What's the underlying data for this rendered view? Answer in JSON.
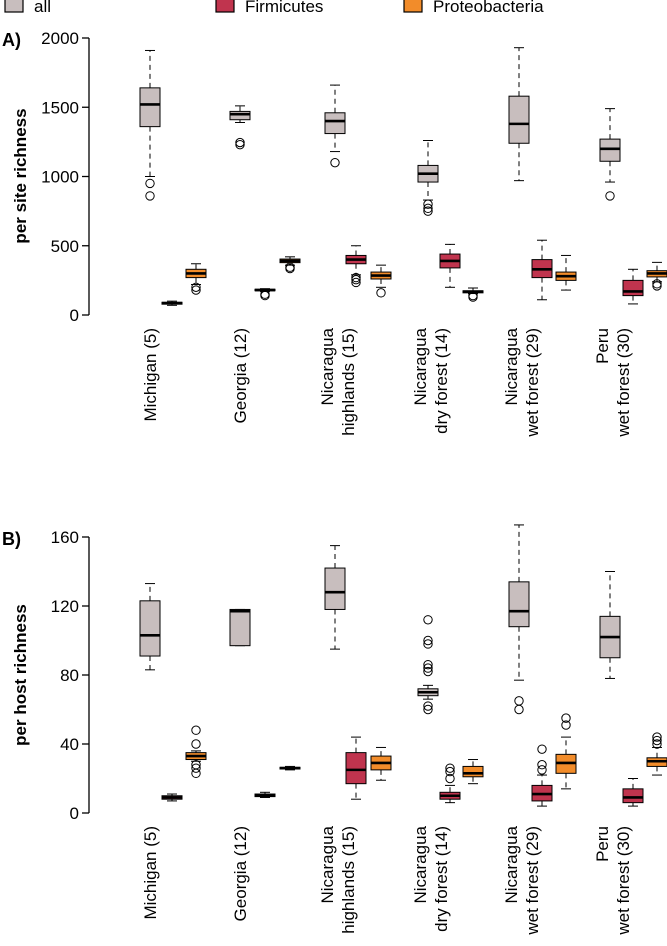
{
  "legend": {
    "items": [
      {
        "label": "all",
        "color": "#c8bebe"
      },
      {
        "label": "Firmicutes",
        "color": "#c0344e"
      },
      {
        "label": "Proteobacteria",
        "color": "#f28c2a"
      }
    ]
  },
  "chart_data": [
    {
      "type": "boxplot",
      "panel_label": "A)",
      "ylabel": "per site richness",
      "ylim": [
        0,
        2000
      ],
      "yticks": [
        0,
        500,
        1000,
        1500,
        2000
      ],
      "categories": [
        {
          "lines": [
            "Michigan (5)"
          ]
        },
        {
          "lines": [
            "Georgia (12)"
          ]
        },
        {
          "lines": [
            "Nicaragua",
            "highlands (15)"
          ]
        },
        {
          "lines": [
            "Nicaragua",
            "dry forest (14)"
          ]
        },
        {
          "lines": [
            "Nicaragua",
            "wet forest (29)"
          ]
        },
        {
          "lines": [
            "Peru",
            "wet forest (30)"
          ]
        }
      ],
      "series": [
        {
          "name": "all",
          "color": "#c8bebe",
          "boxes": [
            {
              "min": 1000,
              "q1": 1360,
              "median": 1520,
              "q3": 1640,
              "max": 1910,
              "outliers": [
                860,
                950
              ]
            },
            {
              "min": 1390,
              "q1": 1410,
              "median": 1450,
              "q3": 1470,
              "max": 1510,
              "outliers": [
                1230,
                1245
              ]
            },
            {
              "min": 1180,
              "q1": 1310,
              "median": 1400,
              "q3": 1460,
              "max": 1660,
              "outliers": [
                1100
              ]
            },
            {
              "min": 830,
              "q1": 960,
              "median": 1020,
              "q3": 1080,
              "max": 1260,
              "outliers": [
                750,
                770,
                800
              ]
            },
            {
              "min": 970,
              "q1": 1240,
              "median": 1380,
              "q3": 1580,
              "max": 1930,
              "outliers": []
            },
            {
              "min": 960,
              "q1": 1110,
              "median": 1200,
              "q3": 1270,
              "max": 1490,
              "outliers": [
                860
              ]
            }
          ]
        },
        {
          "name": "Firmicutes",
          "color": "#c0344e",
          "boxes": [
            {
              "min": 70,
              "q1": 78,
              "median": 85,
              "q3": 92,
              "max": 100,
              "outliers": []
            },
            {
              "min": 170,
              "q1": 176,
              "median": 180,
              "q3": 186,
              "max": 190,
              "outliers": [
                140,
                150
              ]
            },
            {
              "min": 290,
              "q1": 370,
              "median": 400,
              "q3": 430,
              "max": 500,
              "outliers": [
                235,
                255,
                270
              ]
            },
            {
              "min": 200,
              "q1": 340,
              "median": 390,
              "q3": 440,
              "max": 510,
              "outliers": []
            },
            {
              "min": 110,
              "q1": 270,
              "median": 330,
              "q3": 400,
              "max": 540,
              "outliers": []
            },
            {
              "min": 80,
              "q1": 140,
              "median": 170,
              "q3": 250,
              "max": 330,
              "outliers": []
            }
          ]
        },
        {
          "name": "Proteobacteria",
          "color": "#f28c2a",
          "boxes": [
            {
              "min": 220,
              "q1": 270,
              "median": 300,
              "q3": 330,
              "max": 370,
              "outliers": [
                180,
                200
              ]
            },
            {
              "min": 360,
              "q1": 378,
              "median": 390,
              "q3": 404,
              "max": 420,
              "outliers": [
                335,
                345
              ]
            },
            {
              "min": 200,
              "q1": 260,
              "median": 285,
              "q3": 310,
              "max": 360,
              "outliers": [
                160
              ]
            },
            {
              "min": 155,
              "q1": 160,
              "median": 168,
              "q3": 175,
              "max": 195,
              "outliers": [
                130,
                140
              ]
            },
            {
              "min": 180,
              "q1": 250,
              "median": 280,
              "q3": 310,
              "max": 430,
              "outliers": []
            },
            {
              "min": 240,
              "q1": 275,
              "median": 300,
              "q3": 320,
              "max": 380,
              "outliers": [
                210,
                225
              ]
            }
          ]
        }
      ]
    },
    {
      "type": "boxplot",
      "panel_label": "B)",
      "ylabel": "per host richness",
      "ylim": [
        0,
        160
      ],
      "yticks": [
        0,
        40,
        80,
        120,
        160
      ],
      "categories": [
        {
          "lines": [
            "Michigan (5)"
          ]
        },
        {
          "lines": [
            "Georgia (12)"
          ]
        },
        {
          "lines": [
            "Nicaragua",
            "highlands (15)"
          ]
        },
        {
          "lines": [
            "Nicaragua",
            "dry forest (14)"
          ]
        },
        {
          "lines": [
            "Nicaragua",
            "wet forest (29)"
          ]
        },
        {
          "lines": [
            "Peru",
            "wet forest (30)"
          ]
        }
      ],
      "series": [
        {
          "name": "all",
          "color": "#c8bebe",
          "boxes": [
            {
              "min": 83,
              "q1": 91,
              "median": 103,
              "q3": 123,
              "max": 133,
              "outliers": []
            },
            {
              "min": 97,
              "q1": 97,
              "median": 117,
              "q3": 118,
              "max": 118,
              "outliers": []
            },
            {
              "min": 95,
              "q1": 118,
              "median": 128,
              "q3": 142,
              "max": 155,
              "outliers": []
            },
            {
              "min": 66,
              "q1": 68,
              "median": 70,
              "q3": 72,
              "max": 74,
              "outliers": [
                60,
                62,
                82,
                84,
                86,
                98,
                100,
                112
              ]
            },
            {
              "min": 77,
              "q1": 108,
              "median": 117,
              "q3": 134,
              "max": 167,
              "outliers": [
                60,
                65
              ]
            },
            {
              "min": 78,
              "q1": 90,
              "median": 102,
              "q3": 114,
              "max": 140,
              "outliers": []
            }
          ]
        },
        {
          "name": "Firmicutes",
          "color": "#c0344e",
          "boxes": [
            {
              "min": 7,
              "q1": 8,
              "median": 9,
              "q3": 10,
              "max": 11,
              "outliers": []
            },
            {
              "min": 9,
              "q1": 9.5,
              "median": 10,
              "q3": 11,
              "max": 12,
              "outliers": []
            },
            {
              "min": 8,
              "q1": 17,
              "median": 25,
              "q3": 35,
              "max": 44,
              "outliers": []
            },
            {
              "min": 6,
              "q1": 8,
              "median": 10,
              "q3": 12,
              "max": 16,
              "outliers": [
                20,
                24,
                26
              ]
            },
            {
              "min": 4,
              "q1": 7,
              "median": 11,
              "q3": 16,
              "max": 22,
              "outliers": [
                25,
                28,
                37
              ]
            },
            {
              "min": 4,
              "q1": 6,
              "median": 9,
              "q3": 14,
              "max": 20,
              "outliers": []
            }
          ]
        },
        {
          "name": "Proteobacteria",
          "color": "#f28c2a",
          "boxes": [
            {
              "min": 30,
              "q1": 31,
              "median": 33,
              "q3": 35,
              "max": 36,
              "outliers": [
                23,
                26,
                28,
                40,
                48
              ]
            },
            {
              "min": 25,
              "q1": 25.5,
              "median": 26,
              "q3": 26.5,
              "max": 27,
              "outliers": []
            },
            {
              "min": 19,
              "q1": 25,
              "median": 29,
              "q3": 33,
              "max": 38,
              "outliers": []
            },
            {
              "min": 17,
              "q1": 21,
              "median": 23,
              "q3": 27,
              "max": 31,
              "outliers": []
            },
            {
              "min": 14,
              "q1": 23,
              "median": 29,
              "q3": 34,
              "max": 44,
              "outliers": [
                51,
                55
              ]
            },
            {
              "min": 22,
              "q1": 27,
              "median": 30,
              "q3": 32,
              "max": 38,
              "outliers": [
                40,
                42,
                44
              ]
            }
          ]
        }
      ]
    }
  ]
}
